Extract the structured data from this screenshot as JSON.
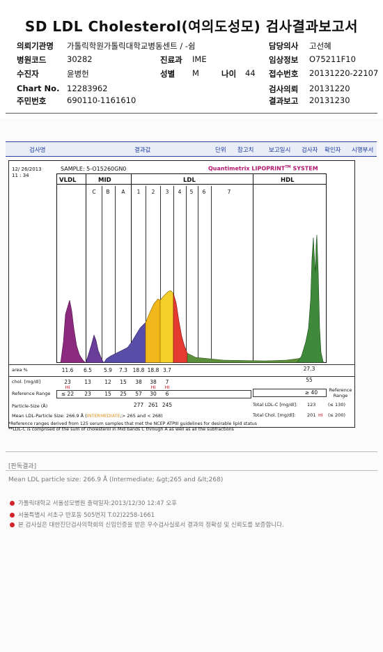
{
  "title": "SD LDL Cholesterol(여의도성모) 검사결과보고서",
  "header": {
    "rows": [
      [
        {
          "label": "의뢰기관명",
          "value": "가톨릭학원가톨릭대학교병동센트 / -쉼"
        },
        {
          "label": "담당의사",
          "value": "고선혜"
        }
      ],
      [
        {
          "label": "병원코드",
          "value": "30282"
        },
        {
          "label": "진료과",
          "value": "IME"
        },
        {
          "label": "임상정보",
          "value": "O75211F10"
        }
      ],
      [
        {
          "label": "수진자",
          "value": "윤병헌"
        },
        {
          "label": "성별",
          "value": "M"
        },
        {
          "label": "나이",
          "value": "44"
        },
        {
          "label": "접수번호",
          "value": "20131220-22107"
        }
      ],
      [
        {
          "label": "Chart No.",
          "value": "12283962"
        },
        {
          "label": "검사의뢰",
          "value": "20131220"
        }
      ],
      [
        {
          "label": "주민번호",
          "value": "690110-1161610"
        },
        {
          "label": "결과보고",
          "value": "20131230"
        }
      ]
    ]
  },
  "columns": [
    "검사명",
    "결과값",
    "단위",
    "참고치",
    "보고일시",
    "검사자",
    "확인자",
    "시행부서"
  ],
  "report": {
    "date": "12/ 26/2013",
    "time": "11 : 34",
    "sample": "SAMPLE:  5-O15260GN0",
    "brand": "Quantimetrix LIPOPRINT",
    "brand_suffix": "SYSTEM",
    "tm": "TM",
    "groups": {
      "vldl": "VLDL",
      "mid": "MID",
      "ldl": "LDL",
      "hdl": "HDL"
    },
    "bands": [
      "C",
      "B",
      "A",
      "1",
      "2",
      "3",
      "4",
      "5",
      "6",
      "7"
    ],
    "area_label": "area %",
    "chol_label": "chol. [mg/dl]",
    "ref_label": "Reference Range",
    "size_label": "Particle-Size (Å)",
    "mean_label": "Mean LDL-Particle Size:",
    "mean_value": "266.9 Å",
    "mean_note_open": "(",
    "mean_note_hl": "INTERMEDIATE",
    "mean_note_rest": ";> 265 and < 268)",
    "area": [
      "11.6",
      "6.5",
      "5.9",
      "7.3",
      "18.8",
      "18.8",
      "3.7"
    ],
    "hdl_area": "27.3",
    "chol": [
      "23",
      "13",
      "12",
      "15",
      "38",
      "38",
      "7"
    ],
    "chol_flags": [
      "HI",
      "",
      "",
      "",
      "",
      "HI",
      "HI"
    ],
    "hdl_chol": "55",
    "ref": [
      "≤ 22",
      "23",
      "15",
      "25",
      "57",
      "30",
      "6"
    ],
    "hdl_ref": "≥ 40",
    "sizes": [
      "277",
      "261",
      "245"
    ],
    "total_ldl_label": "Total LDL-C [mg/dl]:",
    "total_ldl_value": "123",
    "total_ldl_ref": "(≤ 130)",
    "total_chol_label": "Total Chol. [mg/dl]:",
    "total_chol_value": "201",
    "total_chol_flag": "HI",
    "total_chol_ref": "(≤ 200)",
    "ref_range_right": "Reference Range",
    "footnote1": "*Reference ranges derived from 125 serum samples that met the NCEP ATPIII guidelines for desirable lipid status",
    "footnote2": "**LDL-C is comprised of the sum of cholesterol in Mid bands C through A as well as all the subfractions"
  },
  "interpretation": {
    "label": "[판독결과]",
    "text": "Mean LDL particle size: 266.9 Å (Intermediate; &gt;265 and &lt;268)"
  },
  "footer": [
    {
      "text": "가톨릭대학교 서울성모병원        출력일자:2013/12/30 12:47 오후"
    },
    {
      "text": "서울특별시 서초구 반포동 505번지 T.02)2258-1661"
    },
    {
      "text": "본 검사실은 대한진단검사의학회의 신임인증을 받은 우수검사실로서 결과의 정확성 및 신뢰도를 보증합니다."
    }
  ],
  "colors": {
    "vldl": "#8b2a7e",
    "mid": "#5a4da8",
    "ldl1": "#f2c21a",
    "ldl3": "#e43a2f",
    "hdl": "#3f8a3a",
    "accent": "#c0141c"
  }
}
